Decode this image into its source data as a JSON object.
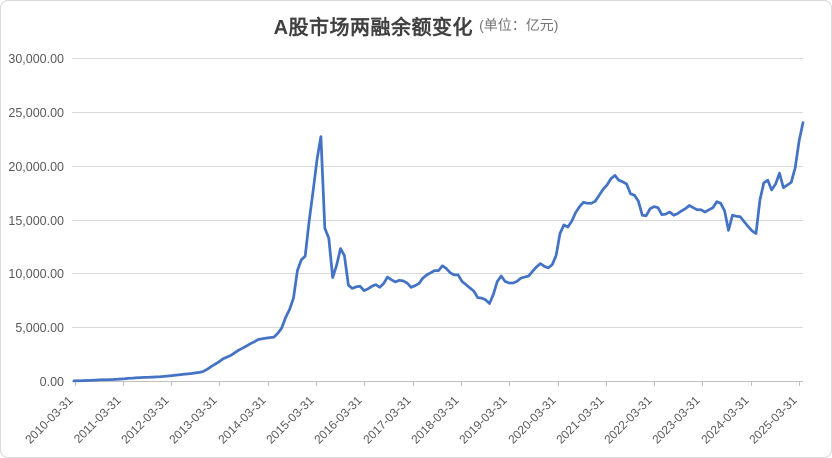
{
  "chart": {
    "title": "A股市场两融余额变化",
    "title_unit": "(单位：亿元)",
    "colors": {
      "line": "#4472C4",
      "gridline": "#d9d9d9",
      "axis": "#bfbfbf",
      "axis_text": "#595959",
      "frame_border": "#d9d9d9",
      "background": "#ffffff"
    }
  },
  "chart_data": {
    "type": "line",
    "title": "A股市场两融余额变化 (单位：亿元)",
    "xlabel": "",
    "ylabel": "",
    "ylim": [
      0,
      30000
    ],
    "grid": true,
    "legend": "none",
    "y_ticks": [
      {
        "v": 0,
        "label": "0.00"
      },
      {
        "v": 5000,
        "label": "5,000.00"
      },
      {
        "v": 10000,
        "label": "10,000.00"
      },
      {
        "v": 15000,
        "label": "15,000.00"
      },
      {
        "v": 20000,
        "label": "20,000.00"
      },
      {
        "v": 25000,
        "label": "25,000.00"
      },
      {
        "v": 30000,
        "label": "30,000.00"
      }
    ],
    "x_ticks": [
      "2010-03-31",
      "2011-03-31",
      "2012-03-31",
      "2013-03-31",
      "2014-03-31",
      "2015-03-31",
      "2016-03-31",
      "2017-03-31",
      "2018-03-31",
      "2019-03-31",
      "2020-03-31",
      "2021-03-31",
      "2022-03-31",
      "2023-03-31",
      "2024-03-31",
      "2025-03-31"
    ],
    "x_interval": "monthly, starting 2010-03",
    "values": [
      13,
      22,
      32,
      42,
      55,
      75,
      95,
      112,
      122,
      128,
      138,
      158,
      188,
      218,
      248,
      270,
      295,
      315,
      330,
      345,
      365,
      382,
      400,
      430,
      460,
      500,
      545,
      580,
      620,
      655,
      700,
      750,
      800,
      895,
      1100,
      1350,
      1560,
      1780,
      2050,
      2220,
      2380,
      2620,
      2860,
      3050,
      3250,
      3465,
      3640,
      3850,
      3920,
      3980,
      4030,
      4080,
      4430,
      4920,
      5900,
      6650,
      7700,
      10250,
      11250,
      11600,
      14900,
      17650,
      20550,
      22700,
      14200,
      13250,
      9600,
      10750,
      12300,
      11650,
      8900,
      8600,
      8750,
      8800,
      8400,
      8550,
      8800,
      8950,
      8700,
      9050,
      9650,
      9400,
      9200,
      9350,
      9300,
      9100,
      8700,
      8850,
      9050,
      9550,
      9850,
      10050,
      10250,
      10250,
      10700,
      10450,
      10050,
      9850,
      9850,
      9250,
      8950,
      8650,
      8350,
      7750,
      7700,
      7550,
      7200,
      8050,
      9250,
      9750,
      9250,
      9100,
      9100,
      9250,
      9550,
      9650,
      9750,
      10200,
      10600,
      10900,
      10650,
      10500,
      10800,
      11650,
      13700,
      14500,
      14300,
      14850,
      15650,
      16200,
      16600,
      16500,
      16500,
      16700,
      17250,
      17800,
      18200,
      18800,
      19100,
      18650,
      18500,
      18300,
      17400,
      17250,
      16700,
      15400,
      15350,
      16000,
      16200,
      16100,
      15450,
      15500,
      15700,
      15400,
      15550,
      15800,
      16000,
      16300,
      16100,
      15900,
      15900,
      15700,
      15900,
      16100,
      16650,
      16500,
      15800,
      14000,
      15400,
      15300,
      15250,
      14800,
      14350,
      13950,
      13700,
      16800,
      18400,
      18650,
      17750,
      18300,
      19300,
      17950,
      18200,
      18450,
      19800,
      22300,
      24000
    ]
  }
}
